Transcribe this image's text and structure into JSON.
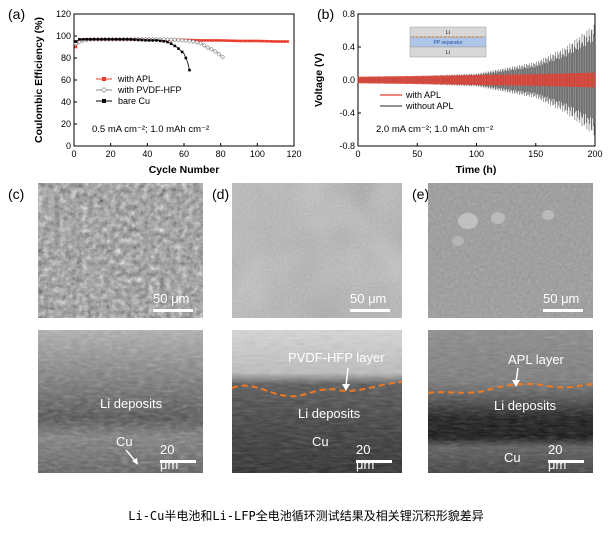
{
  "panels": {
    "a": {
      "letter": "(a)"
    },
    "b": {
      "letter": "(b)"
    },
    "c": {
      "letter": "(c)"
    },
    "d": {
      "letter": "(d)"
    },
    "e": {
      "letter": "(e)"
    }
  },
  "chart_data": [
    {
      "type": "scatter",
      "ylabel": "Coulombic Efficiency (%)",
      "xlabel": "Cycle Number",
      "xlim": [
        0,
        120
      ],
      "ylim": [
        0,
        120
      ],
      "xticks": [
        "0",
        "20",
        "40",
        "60",
        "80",
        "100",
        "120"
      ],
      "yticks": [
        "0",
        "20",
        "40",
        "60",
        "80",
        "100",
        "120"
      ],
      "annotation": "0.5 mA cm⁻²; 1.0 mAh cm⁻²",
      "legend_position": "center-left",
      "series": [
        {
          "name": "with APL",
          "color": "#e8392c",
          "marker": "square",
          "x": [
            1,
            2,
            3,
            5,
            10,
            20,
            30,
            40,
            50,
            60,
            70,
            80,
            90,
            100,
            110,
            117
          ],
          "y": [
            90,
            93,
            96,
            97,
            97,
            97,
            97,
            97,
            96.5,
            96.5,
            96,
            96,
            95.5,
            95.5,
            95,
            95
          ]
        },
        {
          "name": "with PVDF-HFP",
          "color": "#888888",
          "marker": "diamond",
          "x": [
            1,
            5,
            10,
            20,
            30,
            40,
            50,
            60,
            65,
            70,
            72,
            75,
            78,
            80,
            82
          ],
          "y": [
            93,
            96,
            97,
            97,
            97,
            97,
            97,
            96,
            95,
            93,
            90,
            88,
            85,
            82,
            80
          ]
        },
        {
          "name": "bare Cu",
          "color": "#000000",
          "marker": "square",
          "x": [
            1,
            3,
            5,
            10,
            20,
            30,
            40,
            45,
            50,
            52,
            54,
            56,
            58,
            60,
            61,
            62,
            63
          ],
          "y": [
            95,
            97,
            97,
            97,
            97,
            97,
            96,
            96,
            95,
            94,
            92,
            90,
            87,
            84,
            80,
            76,
            69
          ]
        }
      ]
    },
    {
      "type": "line",
      "ylabel": "Voltage (V)",
      "xlabel": "Time (h)",
      "xlim": [
        0,
        200
      ],
      "ylim": [
        -0.8,
        0.8
      ],
      "xticks": [
        "0",
        "50",
        "100",
        "150",
        "200"
      ],
      "yticks": [
        "-0.8",
        "-0.4",
        "0.0",
        "0.4",
        "0.8"
      ],
      "annotation": "2.0 mA cm⁻²; 1.0 mAh cm⁻²",
      "legend_position": "center-left",
      "inset_labels": {
        "top": "Li",
        "middle": "PP separator",
        "bottom": "Li"
      },
      "series": [
        {
          "name": "with APL",
          "color": "#e8392c",
          "envelope_x": [
            0,
            50,
            100,
            150,
            200
          ],
          "envelope_amp": [
            0.04,
            0.05,
            0.06,
            0.07,
            0.09
          ]
        },
        {
          "name": "without APL",
          "color": "#555555",
          "envelope_x": [
            0,
            50,
            100,
            150,
            175,
            200
          ],
          "envelope_amp": [
            0.04,
            0.05,
            0.08,
            0.22,
            0.4,
            0.68
          ]
        }
      ]
    }
  ],
  "images": {
    "c_top_scale": "50 μm",
    "c_bottom_label1": "Li deposits",
    "c_bottom_label2": "Cu",
    "c_bottom_scale": "20 μm",
    "d_top_scale": "50 μm",
    "d_bottom_label1": "PVDF-HFP layer",
    "d_bottom_label2": "Li deposits",
    "d_bottom_label3": "Cu",
    "d_bottom_scale": "20 μm",
    "e_top_scale": "50 μm",
    "e_bottom_label1": "APL layer",
    "e_bottom_label2": "Li deposits",
    "e_bottom_label3": "Cu",
    "e_bottom_scale": "20 μm"
  },
  "caption": "Li-Cu半电池和Li-LFP全电池循环测试结果及相关锂沉积形貌差异"
}
